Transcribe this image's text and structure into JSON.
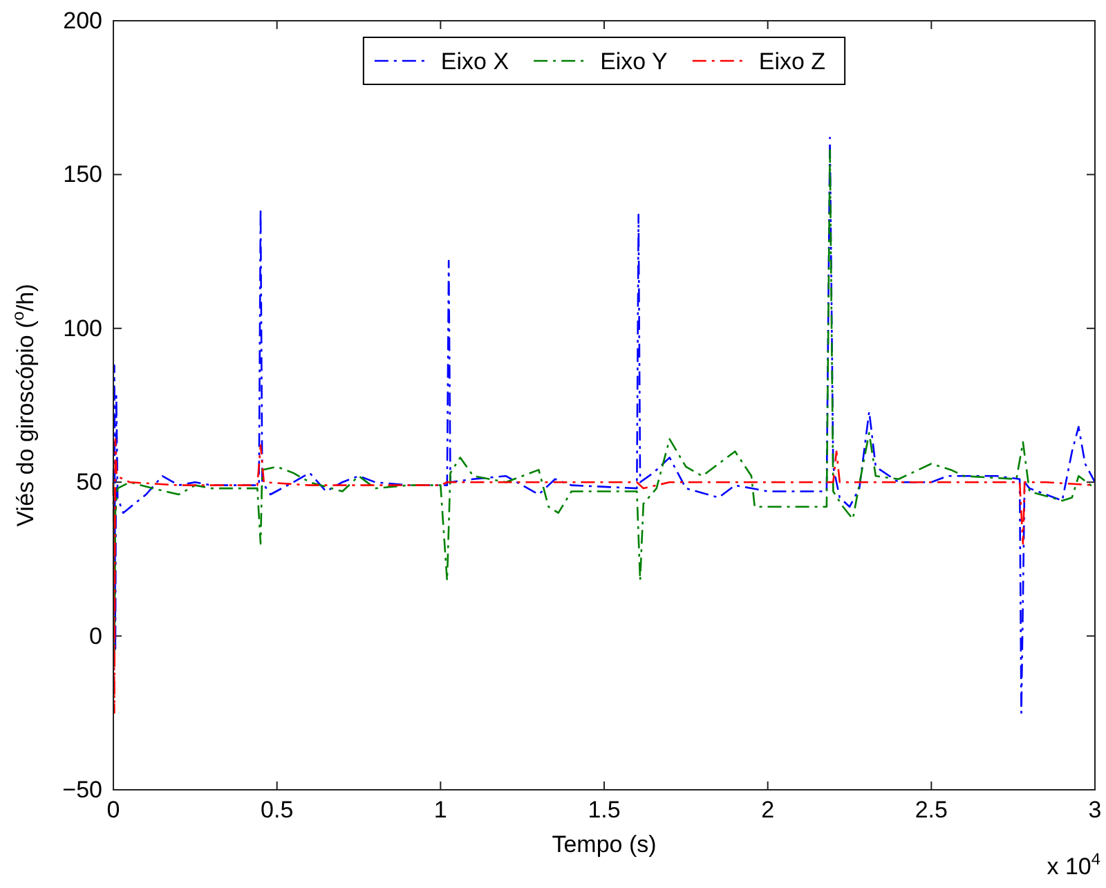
{
  "chart_data": {
    "type": "line",
    "xlabel": "Tempo (s)",
    "ylabel": "Viés do giroscópio ($^{o}$/h)",
    "annotations": [
      "x 10$^{4}$"
    ],
    "xlim": [
      0,
      3
    ],
    "xticks": [
      0,
      0.5,
      1,
      1.5,
      2,
      2.5,
      3
    ],
    "ylim": [
      -50,
      200
    ],
    "yticks": [
      -50,
      0,
      50,
      100,
      150,
      200
    ],
    "grid": false,
    "legend": "top",
    "marker": "none",
    "line_style": "dashed",
    "series": [
      {
        "name": "Eixo X",
        "color": "#0000ff",
        "x": [
          0,
          0.003,
          0.006,
          0.009,
          0.013,
          0.03,
          0.1,
          0.15,
          0.2,
          0.25,
          0.3,
          0.43,
          0.445,
          0.45,
          0.455,
          0.48,
          0.55,
          0.6,
          0.65,
          0.7,
          0.75,
          0.8,
          0.9,
          1.02,
          1.025,
          1.03,
          1.1,
          1.2,
          1.3,
          1.35,
          1.4,
          1.6,
          1.605,
          1.61,
          1.65,
          1.7,
          1.75,
          1.85,
          1.9,
          1.95,
          2.0,
          2.18,
          2.19,
          2.2,
          2.22,
          2.25,
          2.28,
          2.31,
          2.33,
          2.4,
          2.5,
          2.55,
          2.7,
          2.77,
          2.775,
          2.785,
          2.8,
          2.85,
          2.9,
          2.93,
          2.95,
          2.97,
          3.0
        ],
        "values": [
          50,
          88,
          -5,
          78,
          45,
          40,
          46,
          52,
          49,
          50,
          49,
          49,
          49,
          139,
          50,
          46,
          50,
          53,
          47,
          50,
          52,
          50,
          49,
          49,
          122,
          50,
          51,
          52,
          46,
          51,
          49,
          48,
          137,
          50,
          53,
          58,
          48,
          45,
          49,
          48,
          47,
          47,
          162,
          55,
          45,
          42,
          48,
          73,
          55,
          50,
          50,
          52,
          52,
          51,
          -25,
          50,
          48,
          46,
          44,
          60,
          68,
          56,
          50
        ]
      },
      {
        "name": "Eixo Y",
        "color": "#008000",
        "x": [
          0,
          0.003,
          0.006,
          0.013,
          0.05,
          0.12,
          0.2,
          0.25,
          0.3,
          0.44,
          0.45,
          0.455,
          0.5,
          0.55,
          0.6,
          0.7,
          0.75,
          0.8,
          0.9,
          1.0,
          1.02,
          1.03,
          1.06,
          1.1,
          1.2,
          1.3,
          1.33,
          1.36,
          1.4,
          1.45,
          1.6,
          1.61,
          1.62,
          1.66,
          1.7,
          1.75,
          1.8,
          1.9,
          1.95,
          1.96,
          2.18,
          2.19,
          2.2,
          2.23,
          2.26,
          2.29,
          2.31,
          2.33,
          2.4,
          2.5,
          2.56,
          2.6,
          2.76,
          2.78,
          2.8,
          2.9,
          2.93,
          2.95,
          3.0
        ],
        "values": [
          50,
          -10,
          40,
          48,
          50,
          48,
          46,
          49,
          48,
          48,
          30,
          54,
          55,
          53,
          50,
          47,
          52,
          48,
          49,
          49,
          18,
          53,
          58,
          52,
          50,
          54,
          42,
          40,
          47,
          47,
          47,
          18,
          43,
          48,
          64,
          55,
          52,
          60,
          52,
          42,
          42,
          158,
          47,
          42,
          38,
          55,
          66,
          52,
          51,
          56,
          54,
          52,
          51,
          63,
          47,
          44,
          45,
          52,
          48
        ]
      },
      {
        "name": "Eixo Z",
        "color": "#ff0000",
        "x": [
          0,
          0.003,
          0.006,
          0.01,
          0.05,
          0.2,
          0.44,
          0.45,
          0.46,
          0.6,
          1.0,
          1.02,
          1.2,
          1.6,
          1.62,
          1.7,
          2.2,
          2.21,
          2.22,
          2.3,
          2.5,
          2.77,
          2.78,
          2.785,
          2.85,
          3.0
        ],
        "values": [
          50,
          -25,
          64,
          52,
          50,
          49,
          49,
          62,
          50,
          49,
          49,
          50,
          50,
          50,
          48,
          50,
          50,
          60,
          50,
          50,
          50,
          50,
          30,
          50,
          50,
          49
        ]
      }
    ]
  }
}
